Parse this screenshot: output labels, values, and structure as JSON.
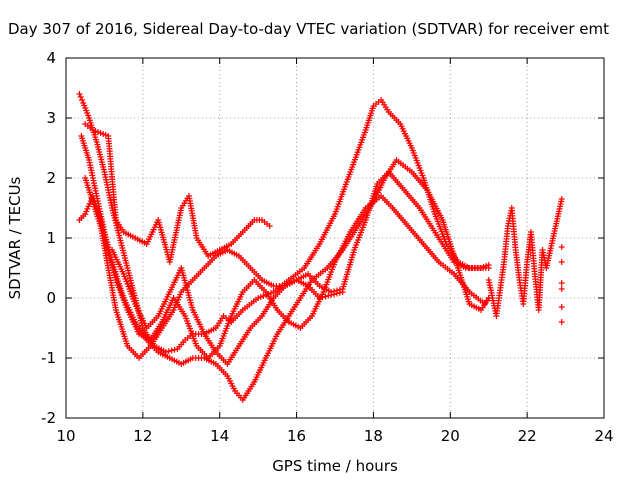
{
  "chart_data": {
    "type": "scatter",
    "title": "Day 307 of 2016, Sidereal Day-to-day VTEC variation (SDTVAR) for receiver emt",
    "xlabel": "GPS time / hours",
    "ylabel": "SDTVAR / TECUs",
    "xlim": [
      10,
      24
    ],
    "ylim": [
      -2,
      4
    ],
    "x_ticks": [
      "10",
      "12",
      "14",
      "16",
      "18",
      "20",
      "22",
      "24"
    ],
    "y_ticks": [
      "-2",
      "-1",
      "0",
      "1",
      "2",
      "3",
      "4"
    ],
    "grid": true,
    "marker": "+",
    "color": "#ff0000",
    "series": [
      {
        "x": [
          10.35,
          10.45,
          10.6,
          10.8,
          11.0,
          11.2,
          11.4,
          11.6,
          11.8,
          12.0,
          12.3,
          12.6,
          12.9,
          13.1,
          13.3,
          13.6,
          13.9,
          14.1,
          14.3,
          14.6,
          15.0,
          15.4,
          15.8,
          16.2,
          16.6,
          17.0,
          17.4,
          17.8,
          18.0,
          18.2,
          18.4,
          18.7,
          19.0,
          19.3,
          19.6,
          19.9,
          20.2,
          20.5,
          20.8,
          21.0
        ],
        "y": [
          3.4,
          3.25,
          3.0,
          2.6,
          2.1,
          1.5,
          1.0,
          0.5,
          0.0,
          -0.5,
          -0.8,
          -0.9,
          -0.85,
          -0.7,
          -0.6,
          -0.6,
          -0.5,
          -0.3,
          -0.4,
          -0.2,
          0.0,
          0.1,
          0.3,
          0.5,
          0.9,
          1.4,
          2.1,
          2.8,
          3.2,
          3.3,
          3.1,
          2.9,
          2.5,
          2.0,
          1.4,
          0.9,
          0.6,
          0.5,
          0.5,
          0.55
        ]
      },
      {
        "x": [
          10.4,
          10.6,
          10.8,
          11.0,
          11.2,
          11.5,
          11.8,
          12.1,
          12.4,
          12.7,
          13.0,
          13.3,
          13.6,
          13.9,
          14.2,
          14.4,
          14.6,
          14.9,
          15.2,
          15.5,
          15.8,
          16.1,
          16.4,
          16.8,
          17.2,
          17.6,
          18.0,
          18.3,
          18.6,
          19.0,
          19.4,
          19.8,
          20.2,
          20.5,
          20.8,
          21.0
        ],
        "y": [
          2.7,
          2.3,
          1.7,
          1.1,
          0.6,
          0.0,
          -0.4,
          -0.7,
          -0.9,
          -1.0,
          -1.1,
          -1.0,
          -1.0,
          -1.1,
          -1.3,
          -1.55,
          -1.7,
          -1.4,
          -1.0,
          -0.6,
          -0.3,
          0.0,
          0.3,
          0.5,
          0.8,
          1.2,
          1.6,
          2.0,
          2.3,
          2.1,
          1.8,
          1.3,
          0.5,
          -0.1,
          -0.2,
          0.0
        ]
      },
      {
        "x": [
          10.35,
          10.5,
          10.7,
          10.9,
          11.1,
          11.3,
          11.6,
          11.9,
          12.2,
          12.5,
          12.8,
          13.1,
          13.4,
          13.7,
          14.0,
          14.3,
          14.6,
          14.9,
          15.2,
          15.5,
          15.8,
          16.1,
          16.4,
          16.7,
          17.0,
          17.4,
          17.8,
          18.2,
          18.5,
          18.9,
          19.3,
          19.7,
          20.1,
          20.5,
          20.9,
          21.0
        ],
        "y": [
          1.3,
          1.4,
          1.7,
          1.3,
          0.8,
          0.3,
          -0.2,
          -0.6,
          -0.7,
          -0.4,
          0.0,
          -0.3,
          -0.8,
          -1.0,
          -0.8,
          -0.3,
          0.1,
          0.3,
          0.1,
          -0.2,
          -0.4,
          -0.5,
          -0.3,
          0.1,
          0.6,
          1.1,
          1.5,
          1.7,
          1.5,
          1.2,
          0.9,
          0.6,
          0.4,
          0.1,
          -0.1,
          0.0
        ]
      },
      {
        "x": [
          10.5,
          10.7,
          10.9,
          11.1,
          11.3,
          11.6,
          11.9,
          12.2,
          12.5,
          12.8,
          13.0,
          13.3,
          13.6,
          13.9,
          14.2,
          14.5,
          14.8,
          15.1,
          15.4,
          15.7,
          16.0,
          16.3,
          16.6,
          16.9,
          17.2,
          17.5,
          17.8,
          18.1,
          18.4,
          18.8,
          19.2,
          19.5,
          19.8,
          20.1,
          20.4,
          20.7,
          21.0
        ],
        "y": [
          2.0,
          1.6,
          1.2,
          0.5,
          -0.2,
          -0.8,
          -1.0,
          -0.8,
          -0.5,
          -0.2,
          0.1,
          0.3,
          0.5,
          0.7,
          0.8,
          0.7,
          0.5,
          0.3,
          0.2,
          0.2,
          0.3,
          0.4,
          0.2,
          0.1,
          0.15,
          0.8,
          1.3,
          1.9,
          2.1,
          1.8,
          1.5,
          1.2,
          0.9,
          0.6,
          0.5,
          0.5,
          0.5
        ]
      },
      {
        "x": [
          10.5,
          10.7,
          10.9,
          11.1,
          11.3,
          11.5,
          11.8,
          12.1,
          12.4,
          12.7,
          13.0,
          13.2,
          13.4,
          13.7,
          14.0,
          14.3,
          14.6,
          14.9,
          15.1,
          15.3
        ],
        "y": [
          2.9,
          2.8,
          2.75,
          2.7,
          1.3,
          1.1,
          1.0,
          0.9,
          1.3,
          0.6,
          1.5,
          1.7,
          1.0,
          0.7,
          0.8,
          0.9,
          1.1,
          1.3,
          1.3,
          1.2
        ]
      },
      {
        "x": [
          11.2,
          11.5,
          11.8,
          12.1,
          12.4,
          12.7,
          13.0,
          13.3,
          13.6,
          13.9,
          14.2,
          14.5,
          14.8,
          15.1,
          15.4,
          15.7,
          16.0,
          16.3,
          16.6,
          16.9,
          17.2
        ],
        "y": [
          0.8,
          0.4,
          -0.1,
          -0.5,
          -0.3,
          0.1,
          0.5,
          -0.2,
          -0.6,
          -0.9,
          -1.1,
          -0.8,
          -0.5,
          -0.3,
          0.0,
          0.2,
          0.3,
          0.2,
          0.0,
          0.05,
          0.1
        ]
      },
      {
        "x": [
          21.0,
          21.2,
          21.4,
          21.5,
          21.6,
          21.7,
          21.8,
          21.9,
          22.0,
          22.1,
          22.2,
          22.3,
          22.4,
          22.5,
          22.9,
          22.9,
          22.9,
          22.9,
          22.9,
          22.9,
          22.9
        ],
        "y": [
          0.3,
          -0.3,
          0.6,
          1.2,
          1.5,
          0.8,
          0.3,
          -0.1,
          0.6,
          1.1,
          0.4,
          -0.2,
          0.8,
          0.5,
          1.65,
          0.85,
          0.6,
          0.25,
          0.15,
          -0.15,
          -0.4
        ]
      }
    ]
  }
}
